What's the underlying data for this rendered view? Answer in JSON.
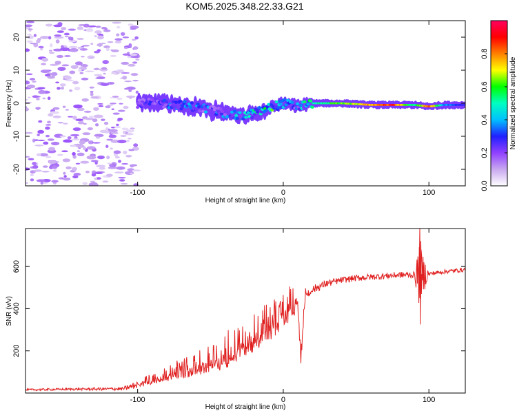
{
  "title": "KOM5.2025.348.22.33.G21",
  "chart_data": [
    {
      "type": "heatmap",
      "name": "spectrogram",
      "xlabel": "Height of straight line (km)",
      "ylabel": "Frequency (Hz)",
      "xlim": [
        -177,
        125
      ],
      "ylim": [
        -25,
        25
      ],
      "xticks": [
        -100,
        0,
        100
      ],
      "yticks": [
        -20,
        -10,
        0,
        10,
        20
      ],
      "xtick_labels": [
        "-100",
        "0",
        "100"
      ],
      "ytick_labels": [
        "-20",
        "-10",
        "0",
        "10",
        "20"
      ],
      "colorbar": {
        "label": "Normalized spectral amplitude",
        "range": [
          0,
          1
        ],
        "ticks": [
          0.0,
          0.2,
          0.4,
          0.6,
          0.8
        ],
        "tick_labels": [
          "0.0",
          "0.2",
          "0.4",
          "0.6",
          "0.8"
        ],
        "colormap": [
          "#ffffff",
          "#c8a8f0",
          "#9040ff",
          "#2020ff",
          "#00c0ff",
          "#00ffc0",
          "#00ff00",
          "#ffff00",
          "#ff8000",
          "#ff0000",
          "#ff0060"
        ]
      },
      "noise_region": {
        "x": [
          -177,
          -100
        ],
        "y": [
          -25,
          25
        ],
        "amplitude": 0.1
      },
      "ridge": [
        {
          "x": -100,
          "f": 0.0,
          "amp": 0.2
        },
        {
          "x": -85,
          "f": 0.0,
          "amp": 0.25
        },
        {
          "x": -70,
          "f": -0.5,
          "amp": 0.3
        },
        {
          "x": -55,
          "f": -1.5,
          "amp": 0.3
        },
        {
          "x": -40,
          "f": -3.0,
          "amp": 0.3
        },
        {
          "x": -30,
          "f": -4.0,
          "amp": 0.35
        },
        {
          "x": -20,
          "f": -3.0,
          "amp": 0.4
        },
        {
          "x": -10,
          "f": -1.5,
          "amp": 0.5
        },
        {
          "x": 0,
          "f": 0.0,
          "amp": 0.4
        },
        {
          "x": 10,
          "f": -1.0,
          "amp": 0.3
        },
        {
          "x": 20,
          "f": 0.0,
          "amp": 0.5
        },
        {
          "x": 40,
          "f": 0.0,
          "amp": 0.65
        },
        {
          "x": 60,
          "f": -0.5,
          "amp": 0.8
        },
        {
          "x": 75,
          "f": -0.5,
          "amp": 0.95
        },
        {
          "x": 90,
          "f": -0.5,
          "amp": 0.5
        },
        {
          "x": 100,
          "f": -1.0,
          "amp": 0.9
        },
        {
          "x": 110,
          "f": -0.5,
          "amp": 0.4
        },
        {
          "x": 125,
          "f": -0.5,
          "amp": 0.3
        }
      ]
    },
    {
      "type": "line",
      "name": "snr",
      "xlabel": "Height of straight line (km)",
      "ylabel": "SNR (v/v)",
      "xlim": [
        -177,
        125
      ],
      "ylim": [
        0,
        780
      ],
      "xticks": [
        -100,
        0,
        100
      ],
      "yticks": [
        200,
        400,
        600
      ],
      "xtick_labels": [
        "-100",
        "0",
        "100"
      ],
      "ytick_labels": [
        "200",
        "400",
        "600"
      ],
      "color": "#e02020",
      "x": [
        -177,
        -150,
        -110,
        -100,
        -90,
        -80,
        -70,
        -60,
        -50,
        -40,
        -30,
        -20,
        -10,
        0,
        5,
        10,
        12,
        15,
        20,
        30,
        40,
        50,
        60,
        70,
        80,
        90,
        93,
        95,
        100,
        110,
        125
      ],
      "y": [
        15,
        18,
        20,
        40,
        60,
        80,
        100,
        120,
        140,
        170,
        220,
        260,
        300,
        370,
        400,
        430,
        160,
        460,
        490,
        520,
        535,
        545,
        550,
        555,
        560,
        560,
        560,
        560,
        565,
        575,
        585
      ],
      "jitter": [
        5,
        5,
        8,
        20,
        30,
        40,
        55,
        65,
        75,
        95,
        110,
        110,
        110,
        100,
        95,
        80,
        60,
        40,
        20,
        18,
        15,
        15,
        15,
        15,
        15,
        15,
        140,
        120,
        10,
        10,
        10
      ],
      "spike": {
        "x": 94,
        "ymax": 785,
        "ymin": 325
      }
    }
  ]
}
